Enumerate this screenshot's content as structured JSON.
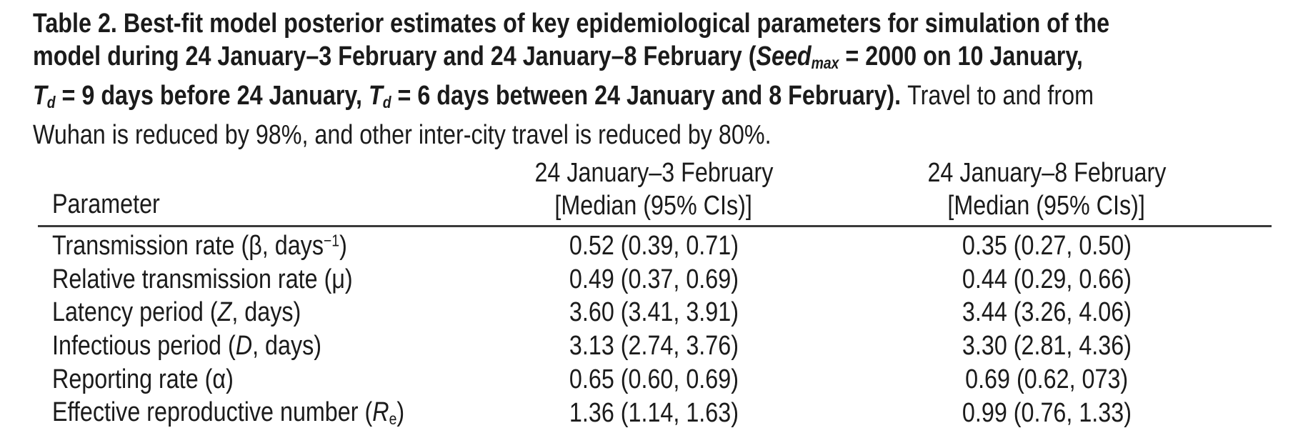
{
  "colors": {
    "background": "#ffffff",
    "text": "#1b1b1b",
    "rule": "#3a3a3a"
  },
  "caption": {
    "lines": [
      {
        "segments": [
          {
            "t": "Table 2. Best-fit model posterior estimates of key epidemiological parameters for simulation of the"
          }
        ]
      },
      {
        "segments": [
          {
            "t": "model during 24 January–3 February and 24 January–8 February ("
          },
          {
            "t": "Seed",
            "i": true
          },
          {
            "t": "max",
            "i": true,
            "sub": true
          },
          {
            "t": " = 2000 on 10 January,"
          }
        ]
      },
      {
        "segments": [
          {
            "t": "T",
            "i": true
          },
          {
            "t": "d",
            "i": true,
            "sub": true
          },
          {
            "t": " = 9 days before 24 January, "
          },
          {
            "t": "T",
            "i": true
          },
          {
            "t": "d",
            "i": true,
            "sub": true
          },
          {
            "t": " = 6 days between 24 January and 8 February). "
          },
          {
            "t": "Travel to and from",
            "regular": true
          }
        ]
      },
      {
        "segments": [
          {
            "t": "Wuhan is reduced by 98%, and other inter-city travel is reduced by 80%.",
            "regular": true
          }
        ]
      }
    ]
  },
  "table": {
    "header": {
      "param_label": "Parameter",
      "col1_line1": "24 January–3 February",
      "col1_line2": "[Median (95% CIs)]",
      "col2_line1": "24 January–8 February",
      "col2_line2": "[Median (95% CIs)]"
    },
    "rows": [
      {
        "param": [
          {
            "t": "Transmission rate (β, days"
          },
          {
            "t": "−1",
            "sup": true
          },
          {
            "t": ")"
          }
        ],
        "v1": "0.52 (0.39, 0.71)",
        "v2": "0.35 (0.27, 0.50)"
      },
      {
        "param": [
          {
            "t": "Relative transmission rate (μ)"
          }
        ],
        "v1": "0.49 (0.37, 0.69)",
        "v2": "0.44 (0.29, 0.66)"
      },
      {
        "param": [
          {
            "t": "Latency period ("
          },
          {
            "t": "Z",
            "i": true
          },
          {
            "t": ", days)"
          }
        ],
        "v1": "3.60 (3.41, 3.91)",
        "v2": "3.44 (3.26, 4.06)"
      },
      {
        "param": [
          {
            "t": "Infectious period ("
          },
          {
            "t": "D",
            "i": true
          },
          {
            "t": ", days)"
          }
        ],
        "v1": "3.13 (2.74, 3.76)",
        "v2": "3.30 (2.81, 4.36)"
      },
      {
        "param": [
          {
            "t": "Reporting rate (α)"
          }
        ],
        "v1": "0.65 (0.60, 0.69)",
        "v2": "0.69 (0.62, 073)"
      },
      {
        "param": [
          {
            "t": "Effective reproductive number ("
          },
          {
            "t": "R",
            "i": true
          },
          {
            "t": "e",
            "sub": true
          },
          {
            "t": ")"
          }
        ],
        "v1": "1.36 (1.14, 1.63)",
        "v2": "0.99 (0.76, 1.33)"
      }
    ]
  }
}
